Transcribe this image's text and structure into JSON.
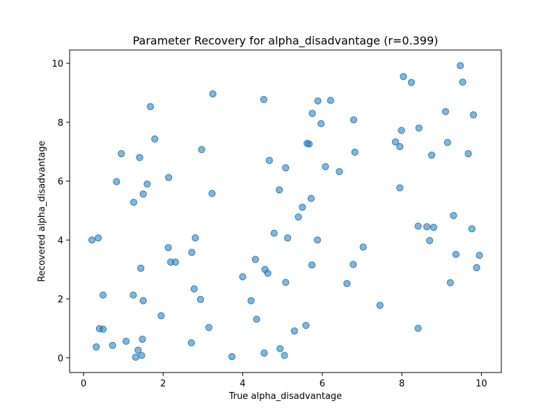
{
  "chart_data": {
    "type": "scatter",
    "title": "Parameter Recovery for alpha_disadvantage (r=0.399)",
    "xlabel": "True alpha_disadvantage",
    "ylabel": "Recovered alpha_disadvantage",
    "xlim": [
      -0.35,
      10.5
    ],
    "ylim": [
      -0.5,
      10.45
    ],
    "xticks": [
      0,
      2,
      4,
      6,
      8,
      10
    ],
    "yticks": [
      0,
      2,
      4,
      6,
      8,
      10
    ],
    "grid": false,
    "point_color": "#1f77b4",
    "point_alpha": 0.55,
    "points": [
      [
        0.21,
        4.0
      ],
      [
        0.37,
        4.07
      ],
      [
        0.32,
        0.37
      ],
      [
        0.4,
        0.99
      ],
      [
        0.49,
        0.97
      ],
      [
        0.49,
        2.13
      ],
      [
        0.73,
        0.42
      ],
      [
        0.83,
        5.98
      ],
      [
        0.95,
        6.93
      ],
      [
        1.07,
        0.56
      ],
      [
        1.25,
        2.13
      ],
      [
        1.26,
        5.28
      ],
      [
        1.31,
        0.02
      ],
      [
        1.37,
        0.26
      ],
      [
        1.41,
        6.8
      ],
      [
        1.44,
        3.04
      ],
      [
        1.46,
        0.08
      ],
      [
        1.48,
        0.63
      ],
      [
        1.5,
        5.56
      ],
      [
        1.5,
        1.94
      ],
      [
        1.6,
        5.9
      ],
      [
        1.68,
        8.53
      ],
      [
        1.79,
        7.43
      ],
      [
        1.95,
        1.43
      ],
      [
        2.13,
        3.74
      ],
      [
        2.14,
        6.12
      ],
      [
        2.19,
        3.25
      ],
      [
        2.31,
        3.25
      ],
      [
        2.71,
        0.51
      ],
      [
        2.72,
        3.58
      ],
      [
        2.78,
        2.34
      ],
      [
        2.81,
        4.07
      ],
      [
        2.94,
        1.98
      ],
      [
        2.97,
        7.07
      ],
      [
        3.15,
        1.03
      ],
      [
        3.23,
        5.58
      ],
      [
        3.25,
        8.96
      ],
      [
        3.73,
        0.04
      ],
      [
        4.0,
        2.75
      ],
      [
        4.21,
        1.94
      ],
      [
        4.32,
        3.34
      ],
      [
        4.35,
        1.31
      ],
      [
        4.53,
        8.77
      ],
      [
        4.54,
        0.16
      ],
      [
        4.56,
        3.0
      ],
      [
        4.63,
        2.87
      ],
      [
        4.67,
        6.7
      ],
      [
        4.79,
        4.23
      ],
      [
        4.92,
        5.7
      ],
      [
        4.94,
        0.31
      ],
      [
        5.05,
        0.08
      ],
      [
        5.08,
        2.56
      ],
      [
        5.08,
        6.45
      ],
      [
        5.13,
        4.07
      ],
      [
        5.3,
        0.91
      ],
      [
        5.4,
        4.78
      ],
      [
        5.5,
        5.11
      ],
      [
        5.59,
        1.1
      ],
      [
        5.62,
        7.28
      ],
      [
        5.67,
        7.26
      ],
      [
        5.72,
        5.41
      ],
      [
        5.74,
        3.15
      ],
      [
        5.75,
        8.3
      ],
      [
        5.88,
        4.0
      ],
      [
        5.89,
        8.72
      ],
      [
        5.97,
        7.95
      ],
      [
        6.08,
        6.49
      ],
      [
        6.21,
        8.74
      ],
      [
        6.43,
        6.32
      ],
      [
        6.62,
        2.52
      ],
      [
        6.78,
        3.17
      ],
      [
        6.79,
        8.08
      ],
      [
        6.82,
        6.98
      ],
      [
        7.03,
        3.76
      ],
      [
        7.45,
        1.78
      ],
      [
        7.84,
        7.33
      ],
      [
        7.95,
        5.77
      ],
      [
        7.95,
        7.17
      ],
      [
        7.99,
        7.72
      ],
      [
        8.04,
        9.55
      ],
      [
        8.24,
        9.35
      ],
      [
        8.41,
        4.47
      ],
      [
        8.41,
        1.0
      ],
      [
        8.43,
        7.8
      ],
      [
        8.63,
        4.45
      ],
      [
        8.7,
        3.98
      ],
      [
        8.75,
        6.88
      ],
      [
        8.8,
        4.43
      ],
      [
        9.1,
        8.36
      ],
      [
        9.15,
        7.31
      ],
      [
        9.22,
        2.55
      ],
      [
        9.3,
        4.83
      ],
      [
        9.36,
        3.51
      ],
      [
        9.47,
        9.92
      ],
      [
        9.53,
        9.36
      ],
      [
        9.67,
        6.93
      ],
      [
        9.76,
        4.38
      ],
      [
        9.8,
        8.25
      ],
      [
        9.88,
        3.06
      ],
      [
        9.95,
        3.48
      ]
    ]
  }
}
